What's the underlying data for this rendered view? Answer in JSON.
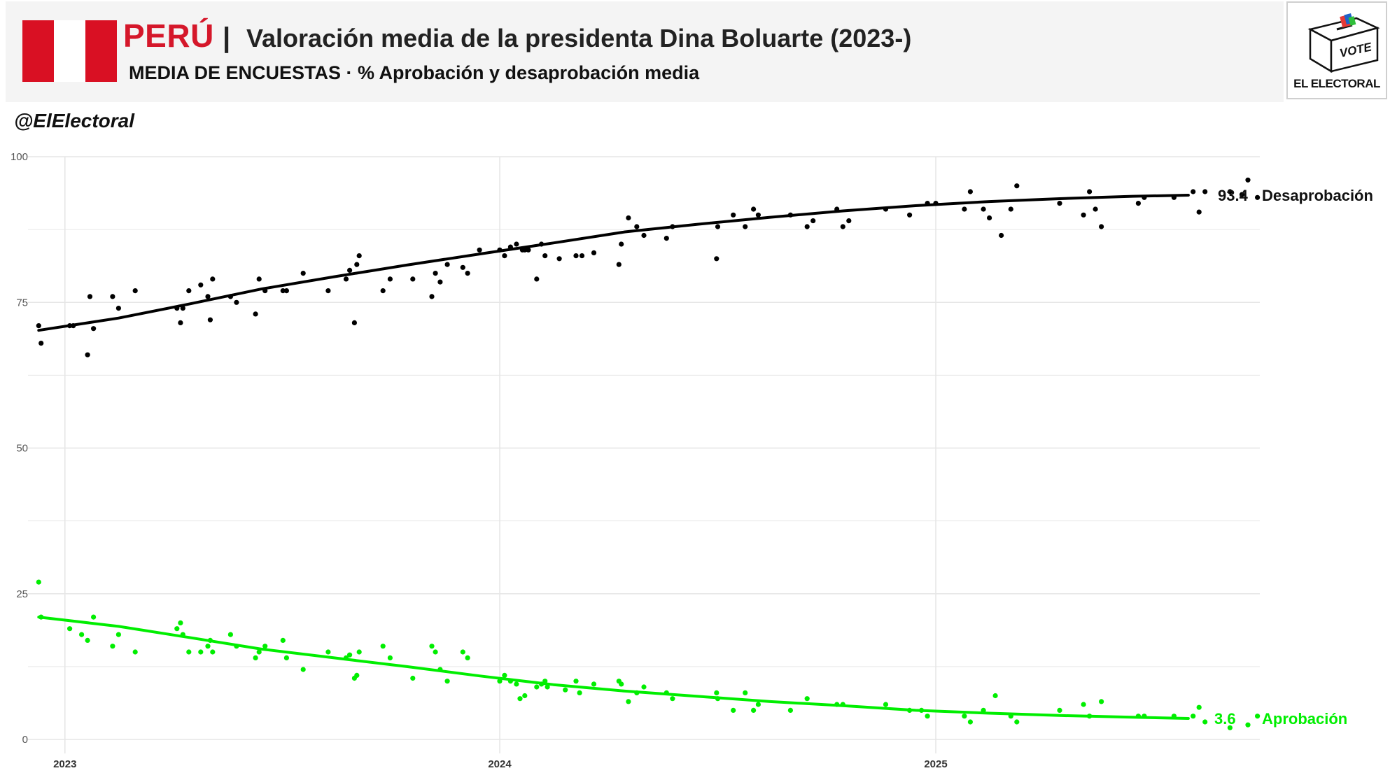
{
  "header": {
    "country": "PERÚ",
    "separator": "|",
    "title": "Valoración media de la presidenta Dina Boluarte (2023-)",
    "subtitle": "MEDIA DE ENCUESTAS · % Aprobación y desaprobación media",
    "handle": "@ElElectoral"
  },
  "logo": {
    "ballot_text": "VOTE",
    "brand": "EL ELECTORAL"
  },
  "colors": {
    "flag_red": "#d91023",
    "disapproval": "#000000",
    "approval": "#00ee00",
    "grid": "#e6e6e6"
  },
  "chart_data": {
    "type": "scatter",
    "ylim": [
      0,
      100
    ],
    "yticks": [
      "0",
      "25",
      "50",
      "75",
      "100"
    ],
    "xticks": [
      "2023",
      "2024",
      "2025"
    ],
    "xlim": [
      "2022-12-01",
      "2025-09-30"
    ],
    "grid": true,
    "series": [
      {
        "name": "Desaprobación",
        "color": "#000000",
        "final_label": "93.4",
        "trend": [
          [
            "2022-12-10",
            70.2
          ],
          [
            "2023-02-15",
            72.3
          ],
          [
            "2023-04-15",
            74.7
          ],
          [
            "2023-06-15",
            77.3
          ],
          [
            "2023-08-15",
            79.4
          ],
          [
            "2023-10-15",
            81.4
          ],
          [
            "2023-12-15",
            83.3
          ],
          [
            "2024-02-15",
            85.2
          ],
          [
            "2024-04-15",
            87.1
          ],
          [
            "2024-06-15",
            88.4
          ],
          [
            "2024-08-15",
            89.6
          ],
          [
            "2024-10-15",
            90.7
          ],
          [
            "2024-12-15",
            91.6
          ],
          [
            "2025-02-15",
            92.3
          ],
          [
            "2025-04-15",
            92.8
          ],
          [
            "2025-06-15",
            93.2
          ],
          [
            "2025-08-01",
            93.4
          ]
        ],
        "points": [
          [
            "2022-12-10",
            71
          ],
          [
            "2022-12-12",
            68
          ],
          [
            "2023-01-05",
            71
          ],
          [
            "2023-01-08",
            71
          ],
          [
            "2023-01-20",
            66
          ],
          [
            "2023-01-22",
            76
          ],
          [
            "2023-01-25",
            70.5
          ],
          [
            "2023-02-10",
            76
          ],
          [
            "2023-02-15",
            74
          ],
          [
            "2023-03-01",
            77
          ],
          [
            "2023-04-05",
            74
          ],
          [
            "2023-04-08",
            71.5
          ],
          [
            "2023-04-10",
            74
          ],
          [
            "2023-04-15",
            77
          ],
          [
            "2023-04-25",
            78
          ],
          [
            "2023-05-01",
            76
          ],
          [
            "2023-05-03",
            72
          ],
          [
            "2023-05-05",
            79
          ],
          [
            "2023-05-20",
            76
          ],
          [
            "2023-05-25",
            75
          ],
          [
            "2023-06-10",
            73
          ],
          [
            "2023-06-13",
            79
          ],
          [
            "2023-06-18",
            77
          ],
          [
            "2023-07-03",
            77
          ],
          [
            "2023-07-06",
            77
          ],
          [
            "2023-07-20",
            80
          ],
          [
            "2023-08-10",
            77
          ],
          [
            "2023-08-25",
            79
          ],
          [
            "2023-08-28",
            80.5
          ],
          [
            "2023-09-01",
            71.5
          ],
          [
            "2023-09-03",
            81.5
          ],
          [
            "2023-09-05",
            83
          ],
          [
            "2023-09-25",
            77
          ],
          [
            "2023-10-01",
            79
          ],
          [
            "2023-10-20",
            79
          ],
          [
            "2023-11-05",
            76
          ],
          [
            "2023-11-08",
            80
          ],
          [
            "2023-11-12",
            78.5
          ],
          [
            "2023-11-18",
            81.5
          ],
          [
            "2023-12-01",
            81
          ],
          [
            "2023-12-05",
            80
          ],
          [
            "2023-12-15",
            84
          ],
          [
            "2024-01-01",
            84
          ],
          [
            "2024-01-05",
            83
          ],
          [
            "2024-01-10",
            84.5
          ],
          [
            "2024-01-15",
            85
          ],
          [
            "2024-01-20",
            84
          ],
          [
            "2024-01-22",
            84
          ],
          [
            "2024-01-25",
            84
          ],
          [
            "2024-02-01",
            79
          ],
          [
            "2024-02-05",
            85
          ],
          [
            "2024-02-08",
            83
          ],
          [
            "2024-02-20",
            82.5
          ],
          [
            "2024-03-05",
            83
          ],
          [
            "2024-03-10",
            83
          ],
          [
            "2024-03-20",
            83.5
          ],
          [
            "2024-04-10",
            81.5
          ],
          [
            "2024-04-12",
            85
          ],
          [
            "2024-04-18",
            89.5
          ],
          [
            "2024-04-25",
            88
          ],
          [
            "2024-05-01",
            86.5
          ],
          [
            "2024-05-20",
            86
          ],
          [
            "2024-05-25",
            88
          ],
          [
            "2024-07-01",
            82.5
          ],
          [
            "2024-07-02",
            88
          ],
          [
            "2024-07-15",
            90
          ],
          [
            "2024-07-25",
            88
          ],
          [
            "2024-08-01",
            91
          ],
          [
            "2024-08-05",
            90
          ],
          [
            "2024-09-01",
            90
          ],
          [
            "2024-09-15",
            88
          ],
          [
            "2024-09-20",
            89
          ],
          [
            "2024-10-10",
            91
          ],
          [
            "2024-10-15",
            88
          ],
          [
            "2024-10-20",
            89
          ],
          [
            "2024-11-20",
            91
          ],
          [
            "2024-12-10",
            90
          ],
          [
            "2024-12-25",
            92
          ],
          [
            "2025-01-01",
            92
          ],
          [
            "2025-01-25",
            91
          ],
          [
            "2025-01-30",
            94
          ],
          [
            "2025-02-10",
            91
          ],
          [
            "2025-02-15",
            89.5
          ],
          [
            "2025-02-25",
            86.5
          ],
          [
            "2025-03-05",
            91
          ],
          [
            "2025-03-10",
            95
          ],
          [
            "2025-04-15",
            92
          ],
          [
            "2025-05-05",
            90
          ],
          [
            "2025-05-10",
            94
          ],
          [
            "2025-05-15",
            91
          ],
          [
            "2025-05-20",
            88
          ],
          [
            "2025-06-20",
            92
          ],
          [
            "2025-06-25",
            93
          ],
          [
            "2025-07-20",
            93
          ],
          [
            "2025-08-05",
            94
          ],
          [
            "2025-08-10",
            90.5
          ],
          [
            "2025-08-15",
            94
          ],
          [
            "2025-09-05",
            94
          ],
          [
            "2025-09-15",
            93.5
          ],
          [
            "2025-09-20",
            96
          ],
          [
            "2025-09-28",
            93
          ]
        ]
      },
      {
        "name": "Aprobación",
        "color": "#00ee00",
        "final_label": "3.6",
        "trend": [
          [
            "2022-12-10",
            21
          ],
          [
            "2023-02-15",
            19.4
          ],
          [
            "2023-04-15",
            17.5
          ],
          [
            "2023-06-15",
            15.5
          ],
          [
            "2023-08-15",
            14.0
          ],
          [
            "2023-10-15",
            12.5
          ],
          [
            "2023-12-15",
            10.9
          ],
          [
            "2024-02-15",
            9.4
          ],
          [
            "2024-04-15",
            8.3
          ],
          [
            "2024-06-15",
            7.4
          ],
          [
            "2024-08-15",
            6.5
          ],
          [
            "2024-10-15",
            5.8
          ],
          [
            "2024-12-15",
            5.0
          ],
          [
            "2025-02-15",
            4.5
          ],
          [
            "2025-04-15",
            4.1
          ],
          [
            "2025-06-15",
            3.8
          ],
          [
            "2025-08-01",
            3.6
          ]
        ],
        "points": [
          [
            "2022-12-10",
            27
          ],
          [
            "2022-12-12",
            21
          ],
          [
            "2023-01-05",
            19
          ],
          [
            "2023-01-15",
            18
          ],
          [
            "2023-01-20",
            17
          ],
          [
            "2023-01-25",
            21
          ],
          [
            "2023-02-10",
            16
          ],
          [
            "2023-02-15",
            18
          ],
          [
            "2023-03-01",
            15
          ],
          [
            "2023-04-05",
            19
          ],
          [
            "2023-04-08",
            20
          ],
          [
            "2023-04-10",
            18
          ],
          [
            "2023-04-15",
            15
          ],
          [
            "2023-04-25",
            15
          ],
          [
            "2023-05-01",
            16
          ],
          [
            "2023-05-03",
            17
          ],
          [
            "2023-05-05",
            15
          ],
          [
            "2023-05-20",
            18
          ],
          [
            "2023-05-25",
            16
          ],
          [
            "2023-06-10",
            14
          ],
          [
            "2023-06-13",
            15
          ],
          [
            "2023-06-18",
            16
          ],
          [
            "2023-07-03",
            17
          ],
          [
            "2023-07-06",
            14
          ],
          [
            "2023-07-20",
            12
          ],
          [
            "2023-08-10",
            15
          ],
          [
            "2023-08-25",
            14
          ],
          [
            "2023-08-28",
            14.5
          ],
          [
            "2023-09-01",
            10.5
          ],
          [
            "2023-09-03",
            11
          ],
          [
            "2023-09-05",
            15
          ],
          [
            "2023-09-25",
            16
          ],
          [
            "2023-10-01",
            14
          ],
          [
            "2023-10-20",
            10.5
          ],
          [
            "2023-11-05",
            16
          ],
          [
            "2023-11-08",
            15
          ],
          [
            "2023-11-12",
            12
          ],
          [
            "2023-11-18",
            10
          ],
          [
            "2023-12-01",
            15
          ],
          [
            "2023-12-05",
            14
          ],
          [
            "2024-01-01",
            10
          ],
          [
            "2024-01-05",
            11
          ],
          [
            "2024-01-10",
            10
          ],
          [
            "2024-01-15",
            9.5
          ],
          [
            "2024-01-18",
            7
          ],
          [
            "2024-01-22",
            7.5
          ],
          [
            "2024-02-01",
            9
          ],
          [
            "2024-02-05",
            9.5
          ],
          [
            "2024-02-08",
            10
          ],
          [
            "2024-02-10",
            9
          ],
          [
            "2024-02-25",
            8.5
          ],
          [
            "2024-03-05",
            10
          ],
          [
            "2024-03-08",
            8
          ],
          [
            "2024-03-20",
            9.5
          ],
          [
            "2024-04-10",
            10
          ],
          [
            "2024-04-12",
            9.5
          ],
          [
            "2024-04-18",
            6.5
          ],
          [
            "2024-04-25",
            8
          ],
          [
            "2024-05-01",
            9
          ],
          [
            "2024-05-20",
            8
          ],
          [
            "2024-05-25",
            7
          ],
          [
            "2024-07-01",
            8
          ],
          [
            "2024-07-02",
            7
          ],
          [
            "2024-07-15",
            5
          ],
          [
            "2024-07-25",
            8
          ],
          [
            "2024-08-01",
            5
          ],
          [
            "2024-08-05",
            6
          ],
          [
            "2024-09-01",
            5
          ],
          [
            "2024-09-15",
            7
          ],
          [
            "2024-10-10",
            6
          ],
          [
            "2024-10-15",
            6
          ],
          [
            "2024-11-20",
            6
          ],
          [
            "2024-12-10",
            5
          ],
          [
            "2024-12-20",
            5
          ],
          [
            "2024-12-25",
            4
          ],
          [
            "2025-01-25",
            4
          ],
          [
            "2025-01-30",
            3
          ],
          [
            "2025-02-10",
            5
          ],
          [
            "2025-02-20",
            7.5
          ],
          [
            "2025-03-05",
            4
          ],
          [
            "2025-03-10",
            3
          ],
          [
            "2025-04-15",
            5
          ],
          [
            "2025-05-05",
            6
          ],
          [
            "2025-05-10",
            4
          ],
          [
            "2025-05-20",
            6.5
          ],
          [
            "2025-06-20",
            4
          ],
          [
            "2025-06-25",
            4
          ],
          [
            "2025-07-20",
            4
          ],
          [
            "2025-08-05",
            4
          ],
          [
            "2025-08-10",
            5.5
          ],
          [
            "2025-08-15",
            3
          ],
          [
            "2025-09-05",
            2
          ],
          [
            "2025-09-20",
            2.5
          ],
          [
            "2025-09-28",
            4
          ]
        ]
      }
    ]
  }
}
